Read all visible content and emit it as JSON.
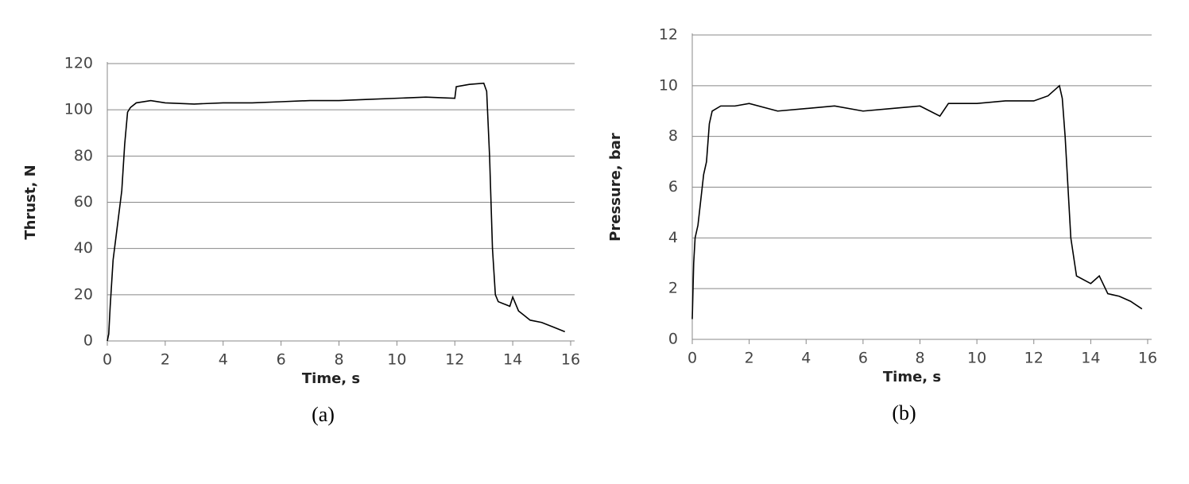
{
  "chart_data": [
    {
      "type": "line",
      "caption": "(a)",
      "xlabel": "Time, s",
      "ylabel": "Thrust, N",
      "x": [
        0,
        0.05,
        0.1,
        0.2,
        0.3,
        0.4,
        0.5,
        0.6,
        0.7,
        0.8,
        1,
        1.5,
        2,
        3,
        4,
        5,
        6,
        7,
        8,
        9,
        10,
        11,
        12,
        12.05,
        12.5,
        13,
        13.1,
        13.2,
        13.3,
        13.4,
        13.5,
        13.7,
        13.9,
        14,
        14.2,
        14.4,
        14.6,
        15,
        15.4,
        15.8
      ],
      "series": [
        {
          "color": "#000000",
          "values": [
            0,
            3,
            15,
            35,
            45,
            55,
            65,
            85,
            99,
            101,
            103,
            104,
            103,
            102.5,
            103,
            103,
            103.5,
            104,
            104,
            104.5,
            105,
            105.5,
            105,
            110,
            111,
            111.5,
            108,
            80,
            40,
            20,
            17,
            16,
            15,
            19,
            13,
            11,
            9,
            8,
            6,
            4
          ]
        }
      ],
      "xlim": [
        0,
        16
      ],
      "xticks": [
        0,
        2,
        4,
        6,
        8,
        10,
        12,
        14,
        16
      ],
      "ylim": [
        0,
        120
      ],
      "yticks": [
        0,
        20,
        40,
        60,
        80,
        100,
        120
      ],
      "grid": true
    },
    {
      "type": "line",
      "caption": "(b)",
      "xlabel": "Time, s",
      "ylabel": "Pressure, bar",
      "x": [
        0,
        0.05,
        0.1,
        0.2,
        0.3,
        0.4,
        0.5,
        0.6,
        0.7,
        1,
        1.5,
        2,
        3,
        4,
        5,
        6,
        7,
        8,
        8.7,
        9,
        10,
        11,
        12,
        12.5,
        12.9,
        13,
        13.1,
        13.2,
        13.3,
        13.5,
        14,
        14.3,
        14.6,
        15,
        15.4,
        15.8
      ],
      "series": [
        {
          "color": "#000000",
          "values": [
            0.8,
            3,
            4,
            4.5,
            5.5,
            6.5,
            7,
            8.5,
            9,
            9.2,
            9.2,
            9.3,
            9,
            9.1,
            9.2,
            9.0,
            9.1,
            9.2,
            8.8,
            9.3,
            9.3,
            9.4,
            9.4,
            9.6,
            10,
            9.5,
            8,
            6,
            4,
            2.5,
            2.2,
            2.5,
            1.8,
            1.7,
            1.5,
            1.2
          ]
        }
      ],
      "xlim": [
        0,
        16
      ],
      "xticks": [
        0,
        2,
        4,
        6,
        8,
        10,
        12,
        14,
        16
      ],
      "ylim": [
        0,
        12
      ],
      "yticks": [
        0,
        2,
        4,
        6,
        8,
        10,
        12
      ],
      "grid": true
    }
  ]
}
